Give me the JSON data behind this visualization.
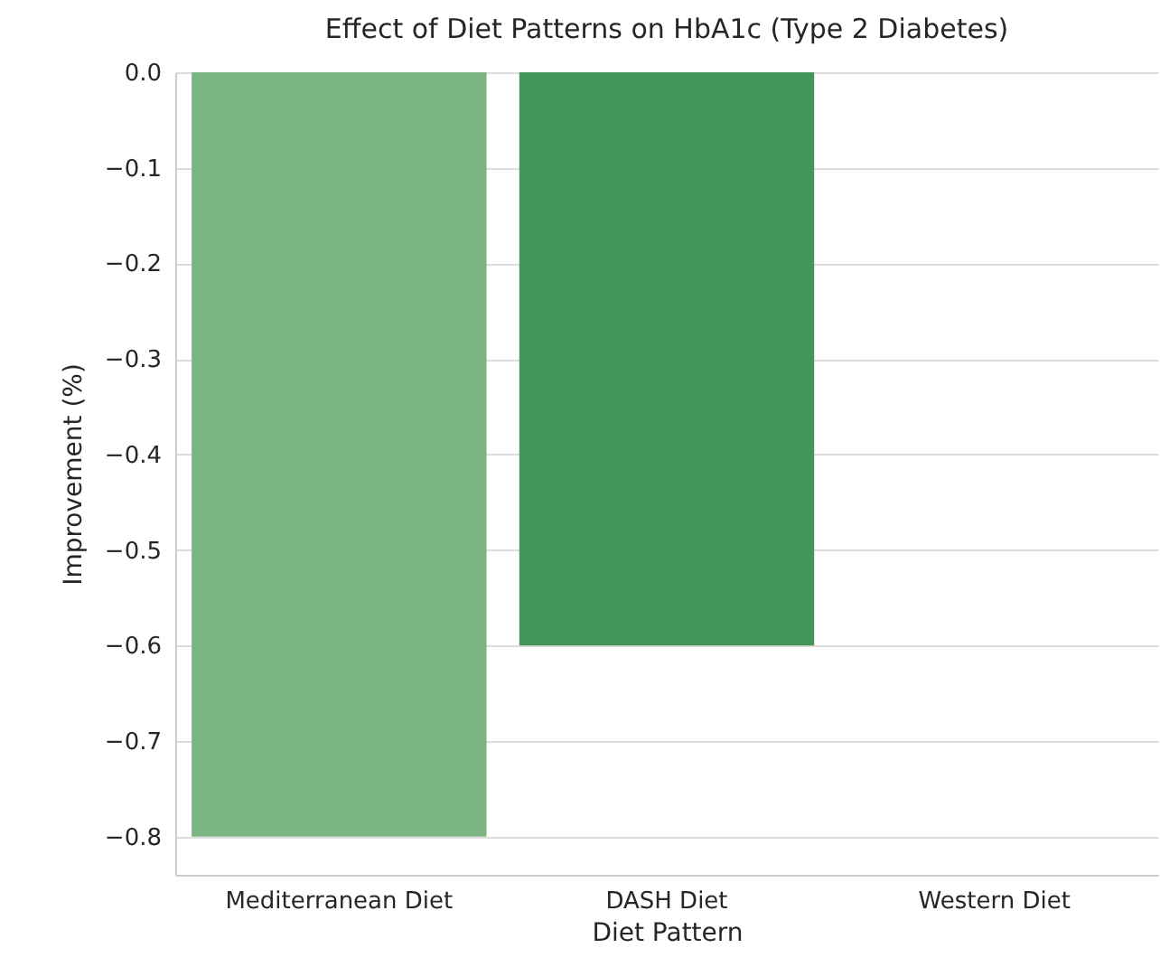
{
  "chart_data": {
    "type": "bar",
    "title": "Effect of Diet Patterns on HbA1c (Type 2 Diabetes)",
    "xlabel": "Diet Pattern",
    "ylabel": "Improvement (%)",
    "categories": [
      "Mediterranean Diet",
      "DASH Diet",
      "Western Diet"
    ],
    "values": [
      -0.8,
      -0.6,
      0
    ],
    "colors": [
      "#7bb584",
      "#449558",
      "#1f6e35"
    ],
    "ylim": [
      -0.84,
      0
    ],
    "yticks": [
      {
        "value": 0,
        "label": "0.0"
      },
      {
        "value": -0.1,
        "label": "−0.1"
      },
      {
        "value": -0.2,
        "label": "−0.2"
      },
      {
        "value": -0.3,
        "label": "−0.3"
      },
      {
        "value": -0.4,
        "label": "−0.4"
      },
      {
        "value": -0.5,
        "label": "−0.5"
      },
      {
        "value": -0.6,
        "label": "−0.6"
      },
      {
        "value": -0.7,
        "label": "−0.7"
      },
      {
        "value": -0.8,
        "label": "−0.8"
      }
    ],
    "grid": "y"
  }
}
